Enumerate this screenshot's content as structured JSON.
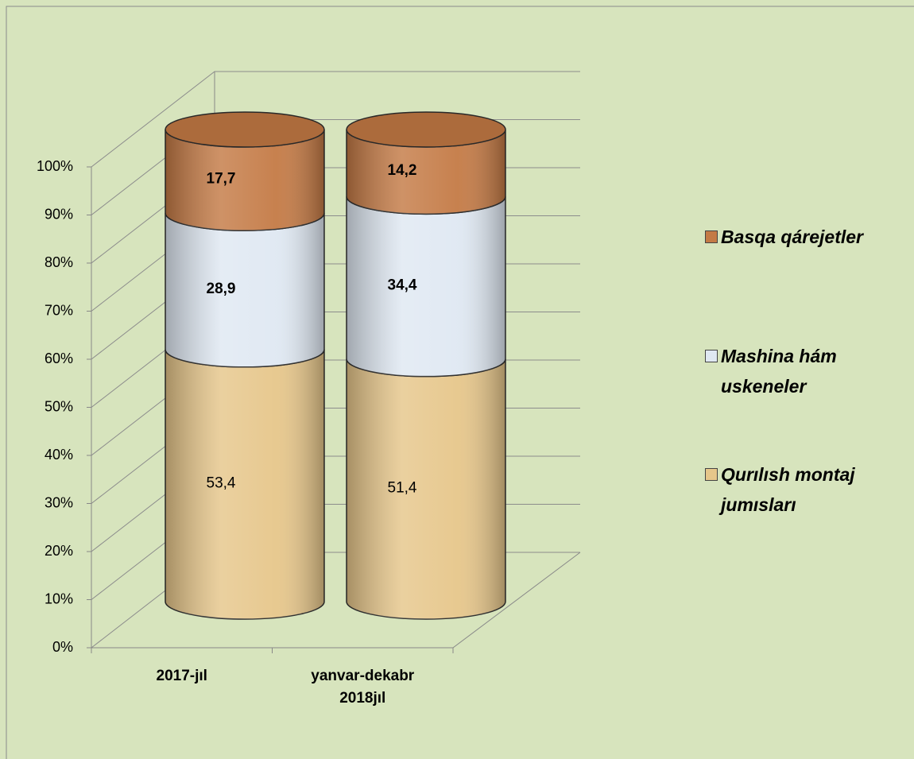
{
  "chart_data": {
    "type": "cylinder_stacked_100",
    "categories": [
      "2017-jıl",
      "yanvar-dekabr 2018jıl"
    ],
    "series": [
      {
        "name": "Qurılısh montaj jumısları",
        "color": "#e6c68a",
        "values": [
          53.4,
          51.4
        ],
        "value_labels": [
          "53,4",
          "51,4"
        ]
      },
      {
        "name": "Mashina hám uskeneler",
        "color": "#dfe8f2",
        "values": [
          28.9,
          34.4
        ],
        "value_labels": [
          "28,9",
          "34,4"
        ]
      },
      {
        "name": "Basqa qárejetler",
        "color": "#c47a45",
        "values": [
          17.7,
          14.2
        ],
        "value_labels": [
          "17,7",
          "14,2"
        ]
      }
    ],
    "ylim": [
      0,
      100
    ],
    "yticks": [
      {
        "value": 0,
        "label": "0%"
      },
      {
        "value": 10,
        "label": "10%"
      },
      {
        "value": 20,
        "label": "20%"
      },
      {
        "value": 30,
        "label": "30%"
      },
      {
        "value": 40,
        "label": "40%"
      },
      {
        "value": 50,
        "label": "50%"
      },
      {
        "value": 60,
        "label": "60%"
      },
      {
        "value": 70,
        "label": "70%"
      },
      {
        "value": 80,
        "label": "80%"
      },
      {
        "value": 90,
        "label": "90%"
      },
      {
        "value": 100,
        "label": "100%"
      }
    ],
    "grid": true,
    "legend": "right"
  }
}
